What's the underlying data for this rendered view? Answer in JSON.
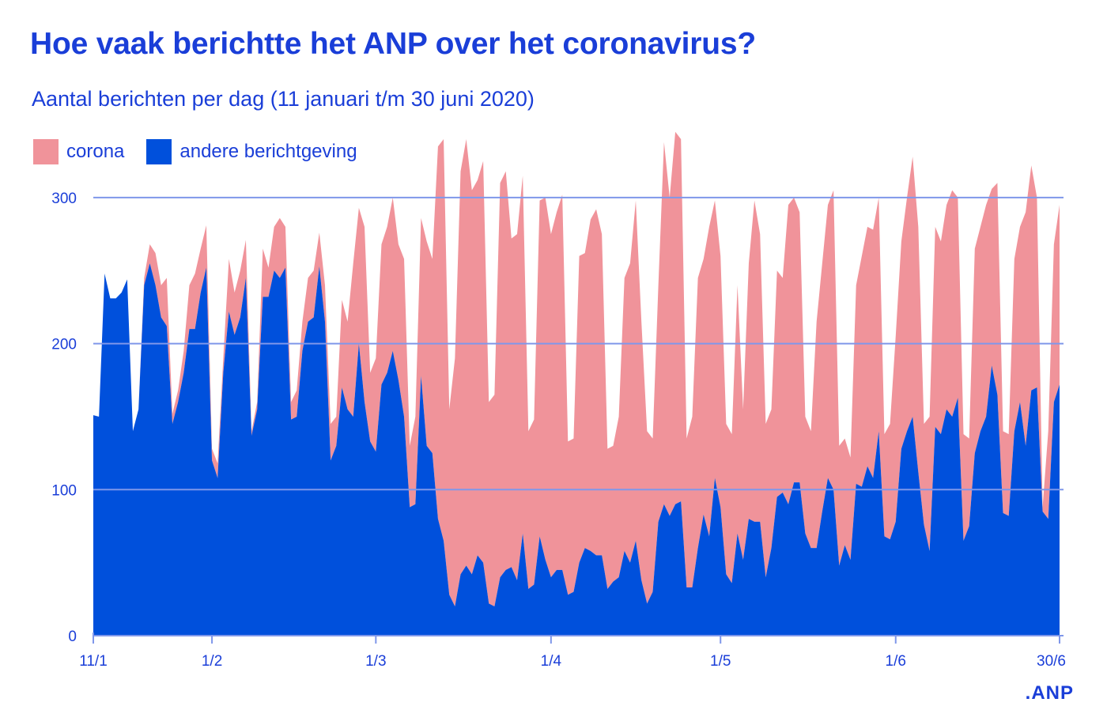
{
  "chart_data": {
    "type": "area",
    "stacked": true,
    "title": "Hoe vaak berichtte het ANP over het coronavirus?",
    "subtitle": "Aantal berichten per dag (11 januari t/m 30 juni 2020)",
    "x_start": "2020-01-11",
    "x_end": "2020-06-30",
    "x_ticks": [
      {
        "label": "11/1",
        "date": "2020-01-11"
      },
      {
        "label": "1/2",
        "date": "2020-02-01"
      },
      {
        "label": "1/3",
        "date": "2020-03-01"
      },
      {
        "label": "1/4",
        "date": "2020-04-01"
      },
      {
        "label": "1/5",
        "date": "2020-05-01"
      },
      {
        "label": "1/6",
        "date": "2020-06-01"
      },
      {
        "label": "30/6",
        "date": "2020-06-30"
      }
    ],
    "y_ticks": [
      "0",
      "100",
      "200",
      "300"
    ],
    "ylim": [
      0,
      350
    ],
    "grid": "horizontal",
    "legend_placement": "top-left",
    "series": [
      {
        "name": "andere berichtgeving",
        "color": "#0050DC",
        "values": [
          151,
          150,
          248,
          231,
          231,
          235,
          244,
          140,
          155,
          240,
          255,
          240,
          218,
          212,
          145,
          160,
          180,
          210,
          210,
          235,
          252,
          120,
          108,
          180,
          222,
          206,
          218,
          245,
          137,
          155,
          232,
          232,
          250,
          245,
          252,
          148,
          150,
          195,
          215,
          218,
          253,
          215,
          120,
          130,
          170,
          155,
          150,
          200,
          160,
          133,
          126,
          172,
          180,
          195,
          175,
          150,
          88,
          90,
          178,
          130,
          125,
          80,
          65,
          28,
          20,
          42,
          48,
          42,
          55,
          50,
          22,
          20,
          40,
          45,
          47,
          38,
          70,
          32,
          35,
          68,
          52,
          40,
          45,
          45,
          28,
          30,
          50,
          60,
          58,
          55,
          55,
          32,
          37,
          40,
          58,
          50,
          65,
          38,
          22,
          30,
          78,
          90,
          82,
          90,
          92,
          33,
          33,
          60,
          83,
          68,
          108,
          88,
          42,
          36,
          70,
          52,
          80,
          78,
          78,
          40,
          60,
          95,
          98,
          90,
          105,
          105,
          70,
          60,
          60,
          85,
          108,
          100,
          48,
          62,
          52,
          104,
          102,
          116,
          108,
          140,
          68,
          66,
          78,
          128,
          140,
          150,
          112,
          76,
          58,
          143,
          138,
          155,
          150,
          163,
          65,
          75,
          125,
          140,
          150,
          185,
          165,
          84,
          82,
          140,
          160,
          130,
          168,
          170,
          85,
          80,
          160,
          172
        ]
      },
      {
        "name": "corona",
        "color": "#F0939A",
        "values": [
          0,
          0,
          0,
          0,
          0,
          0,
          0,
          0,
          0,
          5,
          13,
          22,
          22,
          33,
          7,
          8,
          15,
          30,
          38,
          30,
          29,
          8,
          10,
          10,
          36,
          29,
          32,
          26,
          3,
          5,
          33,
          20,
          30,
          41,
          28,
          12,
          18,
          20,
          30,
          32,
          23,
          25,
          25,
          20,
          60,
          60,
          105,
          93,
          120,
          47,
          64,
          96,
          100,
          105,
          93,
          108,
          42,
          60,
          108,
          140,
          133,
          255,
          275,
          127,
          170,
          276,
          292,
          263,
          257,
          275,
          138,
          145,
          270,
          273,
          225,
          237,
          245,
          108,
          113,
          230,
          248,
          235,
          245,
          257,
          105,
          105,
          210,
          202,
          227,
          237,
          220,
          96,
          93,
          110,
          187,
          205,
          233,
          177,
          118,
          105,
          162,
          248,
          218,
          255,
          248,
          102,
          117,
          185,
          175,
          212,
          190,
          172,
          103,
          102,
          170,
          103,
          175,
          220,
          197,
          105,
          95,
          155,
          147,
          205,
          195,
          185,
          80,
          80,
          155,
          170,
          187,
          205,
          82,
          73,
          70,
          136,
          158,
          164,
          170,
          160,
          70,
          79,
          127,
          142,
          160,
          178,
          168,
          69,
          92,
          137,
          132,
          140,
          155,
          137,
          73,
          60,
          140,
          140,
          145,
          121,
          145,
          56,
          56,
          118,
          120,
          160,
          154,
          130,
          3,
          60,
          108,
          123
        ]
      }
    ]
  },
  "legend": {
    "corona": "corona",
    "andere": "andere berichtgeving"
  },
  "logo": ".ANP",
  "colors": {
    "title": "#1A3ED8",
    "grid": "#7F97EA",
    "corona": "#F0939A",
    "andere": "#0050DC"
  }
}
